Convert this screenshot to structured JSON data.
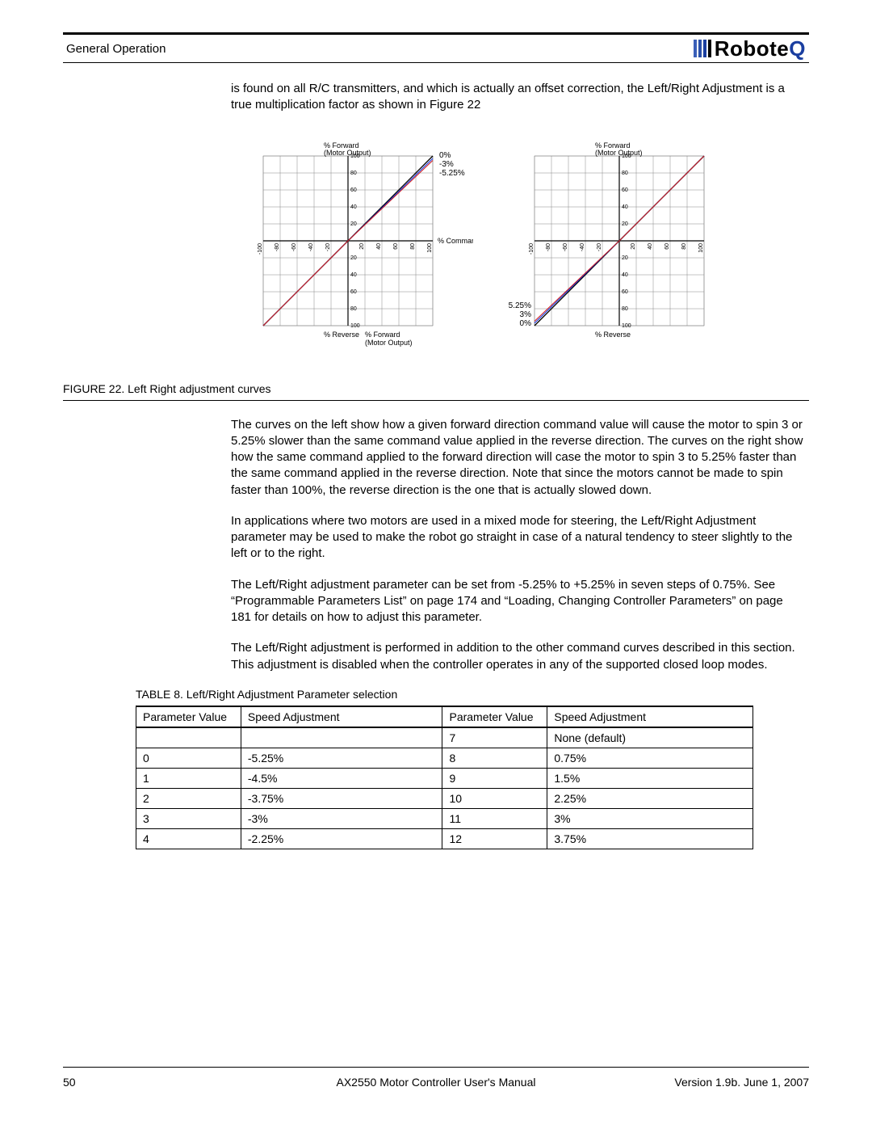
{
  "header": {
    "section_title": "General Operation",
    "logo_text": "Robote",
    "logo_q": "Q",
    "logo_bar_colors": [
      "#3a5fb8",
      "#2a4fa8",
      "#1a3ea0",
      "#000000"
    ]
  },
  "paragraphs": {
    "intro": "is found on all R/C transmitters, and which is actually an offset correction, the Left/Right Adjustment is a true multiplication factor as shown in Figure 22",
    "p1": "The curves on the left show how a given forward direction command value will cause the motor to spin 3 or 5.25% slower than the same command value applied in the reverse direction. The curves on the right show how the same command applied to the forward direction will case the motor to spin 3 to 5.25% faster than the same command applied in the reverse direction. Note that since the motors cannot be made to spin faster than 100%, the reverse direction is the one that is actually slowed down.",
    "p2": "In applications where two motors are used in a mixed mode for steering, the Left/Right Adjustment parameter may be used to make the robot go straight in case of a natural tendency to steer slightly to the left or to the right.",
    "p3": "The Left/Right adjustment parameter can be set from -5.25% to +5.25% in seven steps of 0.75%. See “Programmable Parameters List” on page 174 and “Loading, Changing Controller Parameters” on page 181 for details on how to adjust this parameter.",
    "p4": "The Left/Right adjustment is performed in addition to the other command curves described in this section. This adjustment is disabled when the controller operates in any of the supported closed loop modes."
  },
  "figure": {
    "caption": "FIGURE 22.  Left Right adjustment curves",
    "chart_common": {
      "axis_range": [
        -100,
        100
      ],
      "tick_step": 20,
      "ticks": [
        -100,
        -80,
        -60,
        -40,
        -20,
        0,
        20,
        40,
        60,
        80,
        100
      ],
      "grid_color": "#888888",
      "axis_color": "#000000",
      "line_black": "#000000",
      "line_blue": "#0d2fdd",
      "line_red": "#d11919",
      "series": {
        "black": {
          "slope": 1.0
        },
        "blue": {
          "slope_fwd": 0.97,
          "slope_rev": 1.0
        },
        "red": {
          "slope_fwd": 0.9475,
          "slope_rev": 1.0
        }
      },
      "y_label_top": "% Forward\n(Motor Output)",
      "y_label_bot": "% Reverse",
      "x_label_mid": "% Command Input",
      "x_label_bot": "% Forward\n(Motor Output)"
    },
    "left_chart": {
      "legend": {
        "top": [
          "0%",
          "-3%",
          "-5.25%"
        ]
      }
    },
    "right_chart": {
      "legend": {
        "bot": [
          "5.25%",
          "3%",
          "0%"
        ]
      }
    }
  },
  "table": {
    "caption": "TABLE 8. Left/Right Adjustment Parameter selection",
    "columns": [
      "Parameter Value",
      "Speed Adjustment",
      "Parameter Value",
      "Speed Adjustment"
    ],
    "rows": [
      [
        "",
        "",
        "7",
        "None (default)"
      ],
      [
        "0",
        "-5.25%",
        "8",
        "0.75%"
      ],
      [
        "1",
        "-4.5%",
        "9",
        "1.5%"
      ],
      [
        "2",
        "-3.75%",
        "10",
        "2.25%"
      ],
      [
        "3",
        "-3%",
        "11",
        "3%"
      ],
      [
        "4",
        "-2.25%",
        "12",
        "3.75%"
      ]
    ],
    "col_widths": [
      "130px",
      "250px",
      "130px",
      "255px"
    ]
  },
  "footer": {
    "page": "50",
    "center": "AX2550 Motor Controller User's Manual",
    "right": "Version 1.9b. June 1, 2007"
  }
}
